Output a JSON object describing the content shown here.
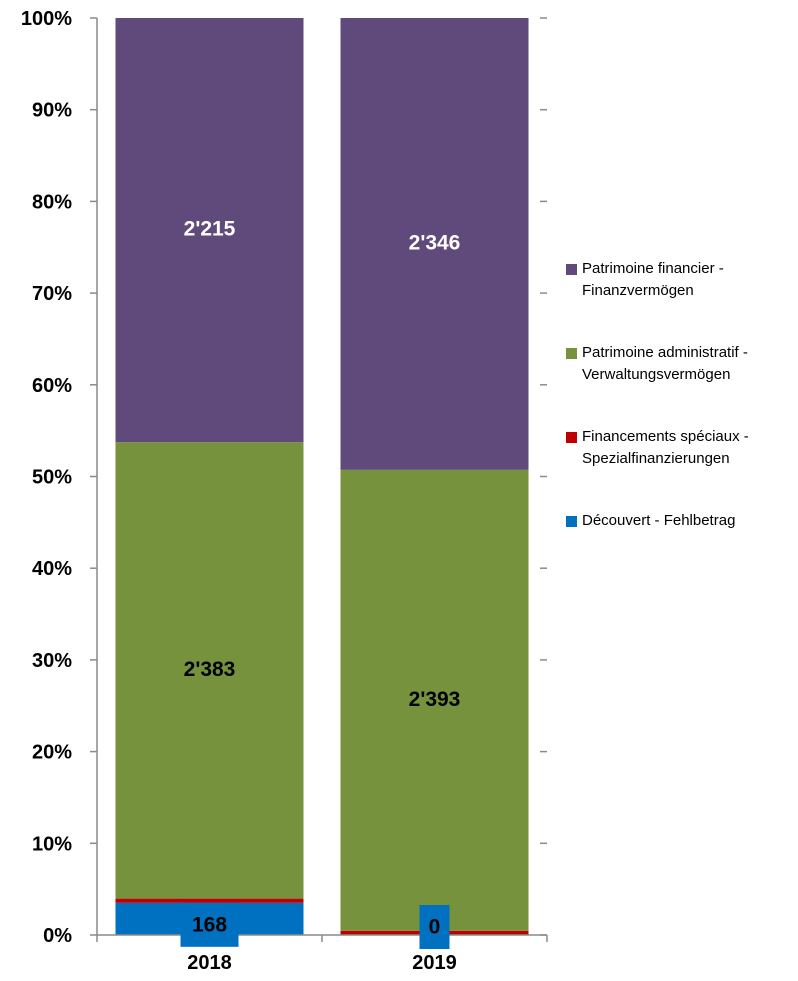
{
  "chart_data": {
    "type": "bar",
    "stacked": "percent",
    "categories": [
      "2018",
      "2019"
    ],
    "yticks": [
      "0%",
      "10%",
      "20%",
      "30%",
      "40%",
      "50%",
      "60%",
      "70%",
      "80%",
      "90%",
      "100%"
    ],
    "ylim": [
      0,
      100
    ],
    "grid": false,
    "legend_position": "right",
    "series": [
      {
        "name": "Découvert - Fehlbetrag",
        "color": "#0070C0",
        "values": [
          168,
          0
        ],
        "labels": [
          "168",
          "0"
        ]
      },
      {
        "name": "Financements spéciaux - Spezialfinanzierungen",
        "color": "#C00000",
        "values": [
          22,
          22
        ],
        "labels": [
          "",
          ""
        ]
      },
      {
        "name": "Patrimoine administratif - Verwaltungsvermögen",
        "color": "#76923C",
        "values": [
          2383,
          2393
        ],
        "labels": [
          "2'383",
          "2'393"
        ]
      },
      {
        "name": "Patrimoine financier - Finanzvermögen",
        "color": "#604A7B",
        "values": [
          2215,
          2346
        ],
        "labels": [
          "2'215",
          "2'346"
        ]
      }
    ]
  },
  "legend": {
    "items": [
      {
        "text": "Patrimoine financier -\nFinanzvermögen",
        "color": "#604A7B"
      },
      {
        "text": "Patrimoine administratif -\nVerwaltungsvermögen",
        "color": "#76923C"
      },
      {
        "text": "Financements spéciaux -\nSpezialfinanzierungen",
        "color": "#C00000"
      },
      {
        "text": "Découvert - Fehlbetrag",
        "color": "#0070C0"
      }
    ]
  }
}
